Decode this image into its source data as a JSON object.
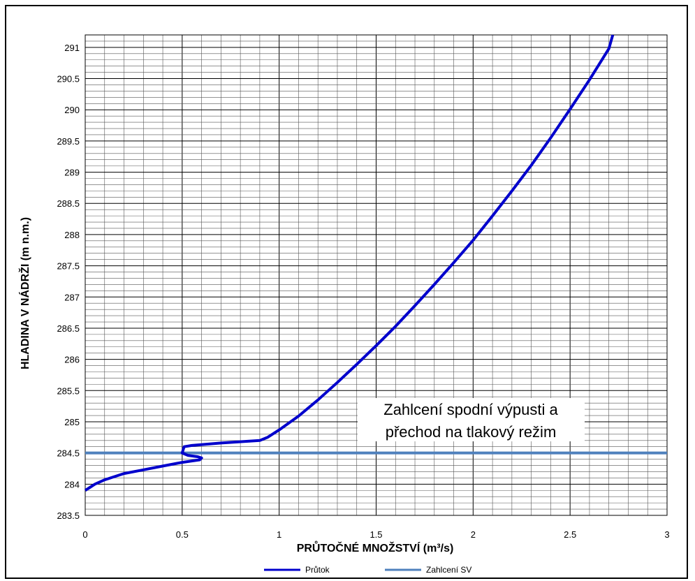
{
  "chart_data": {
    "type": "line",
    "xlabel": "PRŮTOČNÉ MNOŽSTVÍ (m³/s)",
    "ylabel": "HLADINA V NÁDRŽI (m n.m.)",
    "xlim": [
      0,
      3
    ],
    "ylim": [
      283.5,
      291.2
    ],
    "x_ticks": [
      "0",
      "0.5",
      "1",
      "1.5",
      "2",
      "2.5",
      "3"
    ],
    "y_ticks": [
      "283.5",
      "284",
      "284.5",
      "285",
      "285.5",
      "286",
      "286.5",
      "287",
      "287.5",
      "288",
      "288.5",
      "289",
      "289.5",
      "290",
      "290.5",
      "291"
    ],
    "grid": true,
    "series": [
      {
        "name": "Průtok",
        "color": "#0000cc",
        "x": [
          0.0,
          0.05,
          0.1,
          0.2,
          0.3,
          0.4,
          0.5,
          0.59,
          0.6,
          0.58,
          0.53,
          0.5,
          0.51,
          0.55,
          0.7,
          0.9,
          0.94,
          1.0,
          1.1,
          1.2,
          1.3,
          1.4,
          1.5,
          1.6,
          1.7,
          1.8,
          1.9,
          2.0,
          2.1,
          2.2,
          2.3,
          2.4,
          2.5,
          2.6,
          2.7,
          2.72
        ],
        "y": [
          283.9,
          284.0,
          284.07,
          284.17,
          284.23,
          284.29,
          284.35,
          284.39,
          284.42,
          284.44,
          284.46,
          284.5,
          284.6,
          284.62,
          284.66,
          284.7,
          284.75,
          284.87,
          285.09,
          285.35,
          285.63,
          285.92,
          286.22,
          286.53,
          286.86,
          287.2,
          287.55,
          287.91,
          288.3,
          288.7,
          289.11,
          289.55,
          290.01,
          290.48,
          290.98,
          291.2
        ]
      },
      {
        "name": "Zahlcení SV",
        "color": "#4f81bd",
        "y_constant": 284.5
      }
    ],
    "annotation": [
      "Zahlcení spodní výpusti a",
      "přechod na tlakový režim"
    ],
    "legend_position": "bottom"
  }
}
